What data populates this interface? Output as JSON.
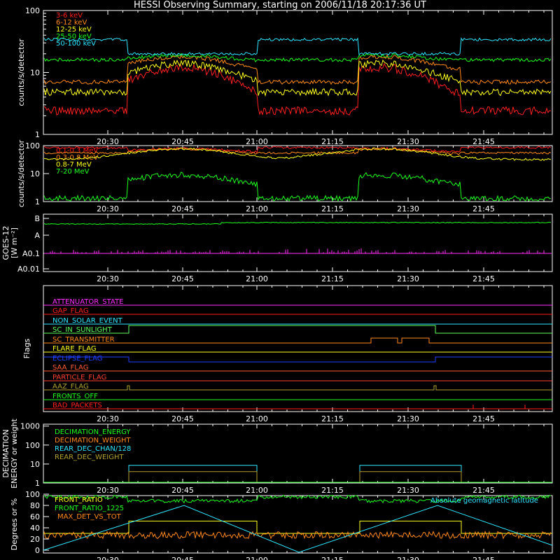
{
  "title": "HESSI Observing Summary, starting on 2006/11/18 20:17:36 UT",
  "x_ticks": [
    "20:30",
    "20:45",
    "21:00",
    "21:15",
    "21:30",
    "21:45"
  ],
  "colors": {
    "red": "#ff2020",
    "orange": "#ff8a1e",
    "yellow": "#ffff20",
    "green": "#20ff20",
    "cyan": "#30e8ff",
    "magenta": "#ff30ff",
    "blue": "#2040ff",
    "olive": "#b0a030",
    "gold": "#ffd040",
    "lightgreen": "#60ff60",
    "darkred": "#ff4030",
    "coral": "#ff5a3a"
  },
  "chart_data": [
    {
      "id": "counts_low",
      "type": "line",
      "ylabel": "counts/s/detector",
      "y_scale": "log",
      "ylim": [
        1,
        100
      ],
      "y_tick_labels": [
        "1",
        "10",
        "100"
      ],
      "series": [
        {
          "name": "3-6 keV",
          "color": "red"
        },
        {
          "name": "6-12 keV",
          "color": "orange"
        },
        {
          "name": "12-25 keV",
          "color": "yellow"
        },
        {
          "name": "25-50 keV",
          "color": "green"
        },
        {
          "name": "50-100 keV",
          "color": "cyan"
        }
      ]
    },
    {
      "id": "counts_high",
      "type": "line",
      "ylabel": "counts/s/detector",
      "y_scale": "log",
      "ylim": [
        1,
        100
      ],
      "y_tick_labels": [
        "1",
        "10",
        "100"
      ],
      "series": [
        {
          "name": "0.1-0.3 MeV",
          "color": "red"
        },
        {
          "name": "0.3-0.8 MeV",
          "color": "orange"
        },
        {
          "name": "0.8-7 MeV",
          "color": "yellow"
        },
        {
          "name": "7-20 MeV",
          "color": "green"
        }
      ]
    },
    {
      "id": "goes",
      "type": "line",
      "ylabel": "GOES-12",
      "ylabel2": "[W m⁻²]",
      "y_tick_labels": [
        "A0.01",
        "A0.1",
        "A",
        "B"
      ]
    },
    {
      "id": "flags",
      "type": "line",
      "ylabel": "Flags",
      "flags": [
        {
          "name": "ATTENUATOR_STATE",
          "color": "magenta"
        },
        {
          "name": "GAP_FLAG",
          "color": "red"
        },
        {
          "name": "NON_SOLAR_EVENT",
          "color": "cyan"
        },
        {
          "name": "SC_IN_SUNLIGHT",
          "color": "lightgreen"
        },
        {
          "name": "SC_TRANSMITTER",
          "color": "orange"
        },
        {
          "name": "FLARE_FLAG",
          "color": "yellow"
        },
        {
          "name": "ECLIPSE_FLAG",
          "color": "blue"
        },
        {
          "name": "SAA_FLAG",
          "color": "coral"
        },
        {
          "name": "PARTICLE_FLAG",
          "color": "darkred"
        },
        {
          "name": "AAZ_FLAG",
          "color": "olive"
        },
        {
          "name": "FRONTS_OFF",
          "color": "green"
        },
        {
          "name": "BAD_PACKETS",
          "color": "red"
        }
      ]
    },
    {
      "id": "decimation",
      "type": "line",
      "ylabel": "DECIMATION",
      "ylabel2": "ENERGY or weight",
      "y_scale": "log",
      "ylim": [
        1,
        1000
      ],
      "y_tick_labels": [
        "1",
        "10",
        "100",
        "1000"
      ],
      "series": [
        {
          "name": "DECIMATION_ENERGY",
          "color": "green"
        },
        {
          "name": "DECIMATION_WEIGHT",
          "color": "orange"
        },
        {
          "name": "REAR_DEC_CHAN/128",
          "color": "cyan"
        },
        {
          "name": "REAR_DEC_WEIGHT",
          "color": "olive"
        }
      ]
    },
    {
      "id": "ratio",
      "type": "line",
      "ylabel": "Degrees or %",
      "ylim": [
        0,
        100
      ],
      "y_tick_labels": [
        "0",
        "20",
        "40",
        "60",
        "80",
        "100"
      ],
      "series": [
        {
          "name": "FRONT_RATIO",
          "color": "yellow"
        },
        {
          "name": "FRONT_RATIO_1225",
          "color": "green"
        },
        {
          "name": "MAX_DET_VS_TOT",
          "color": "orange"
        },
        {
          "name": "Absolute geomagnetic latitude",
          "color": "cyan"
        }
      ]
    }
  ]
}
